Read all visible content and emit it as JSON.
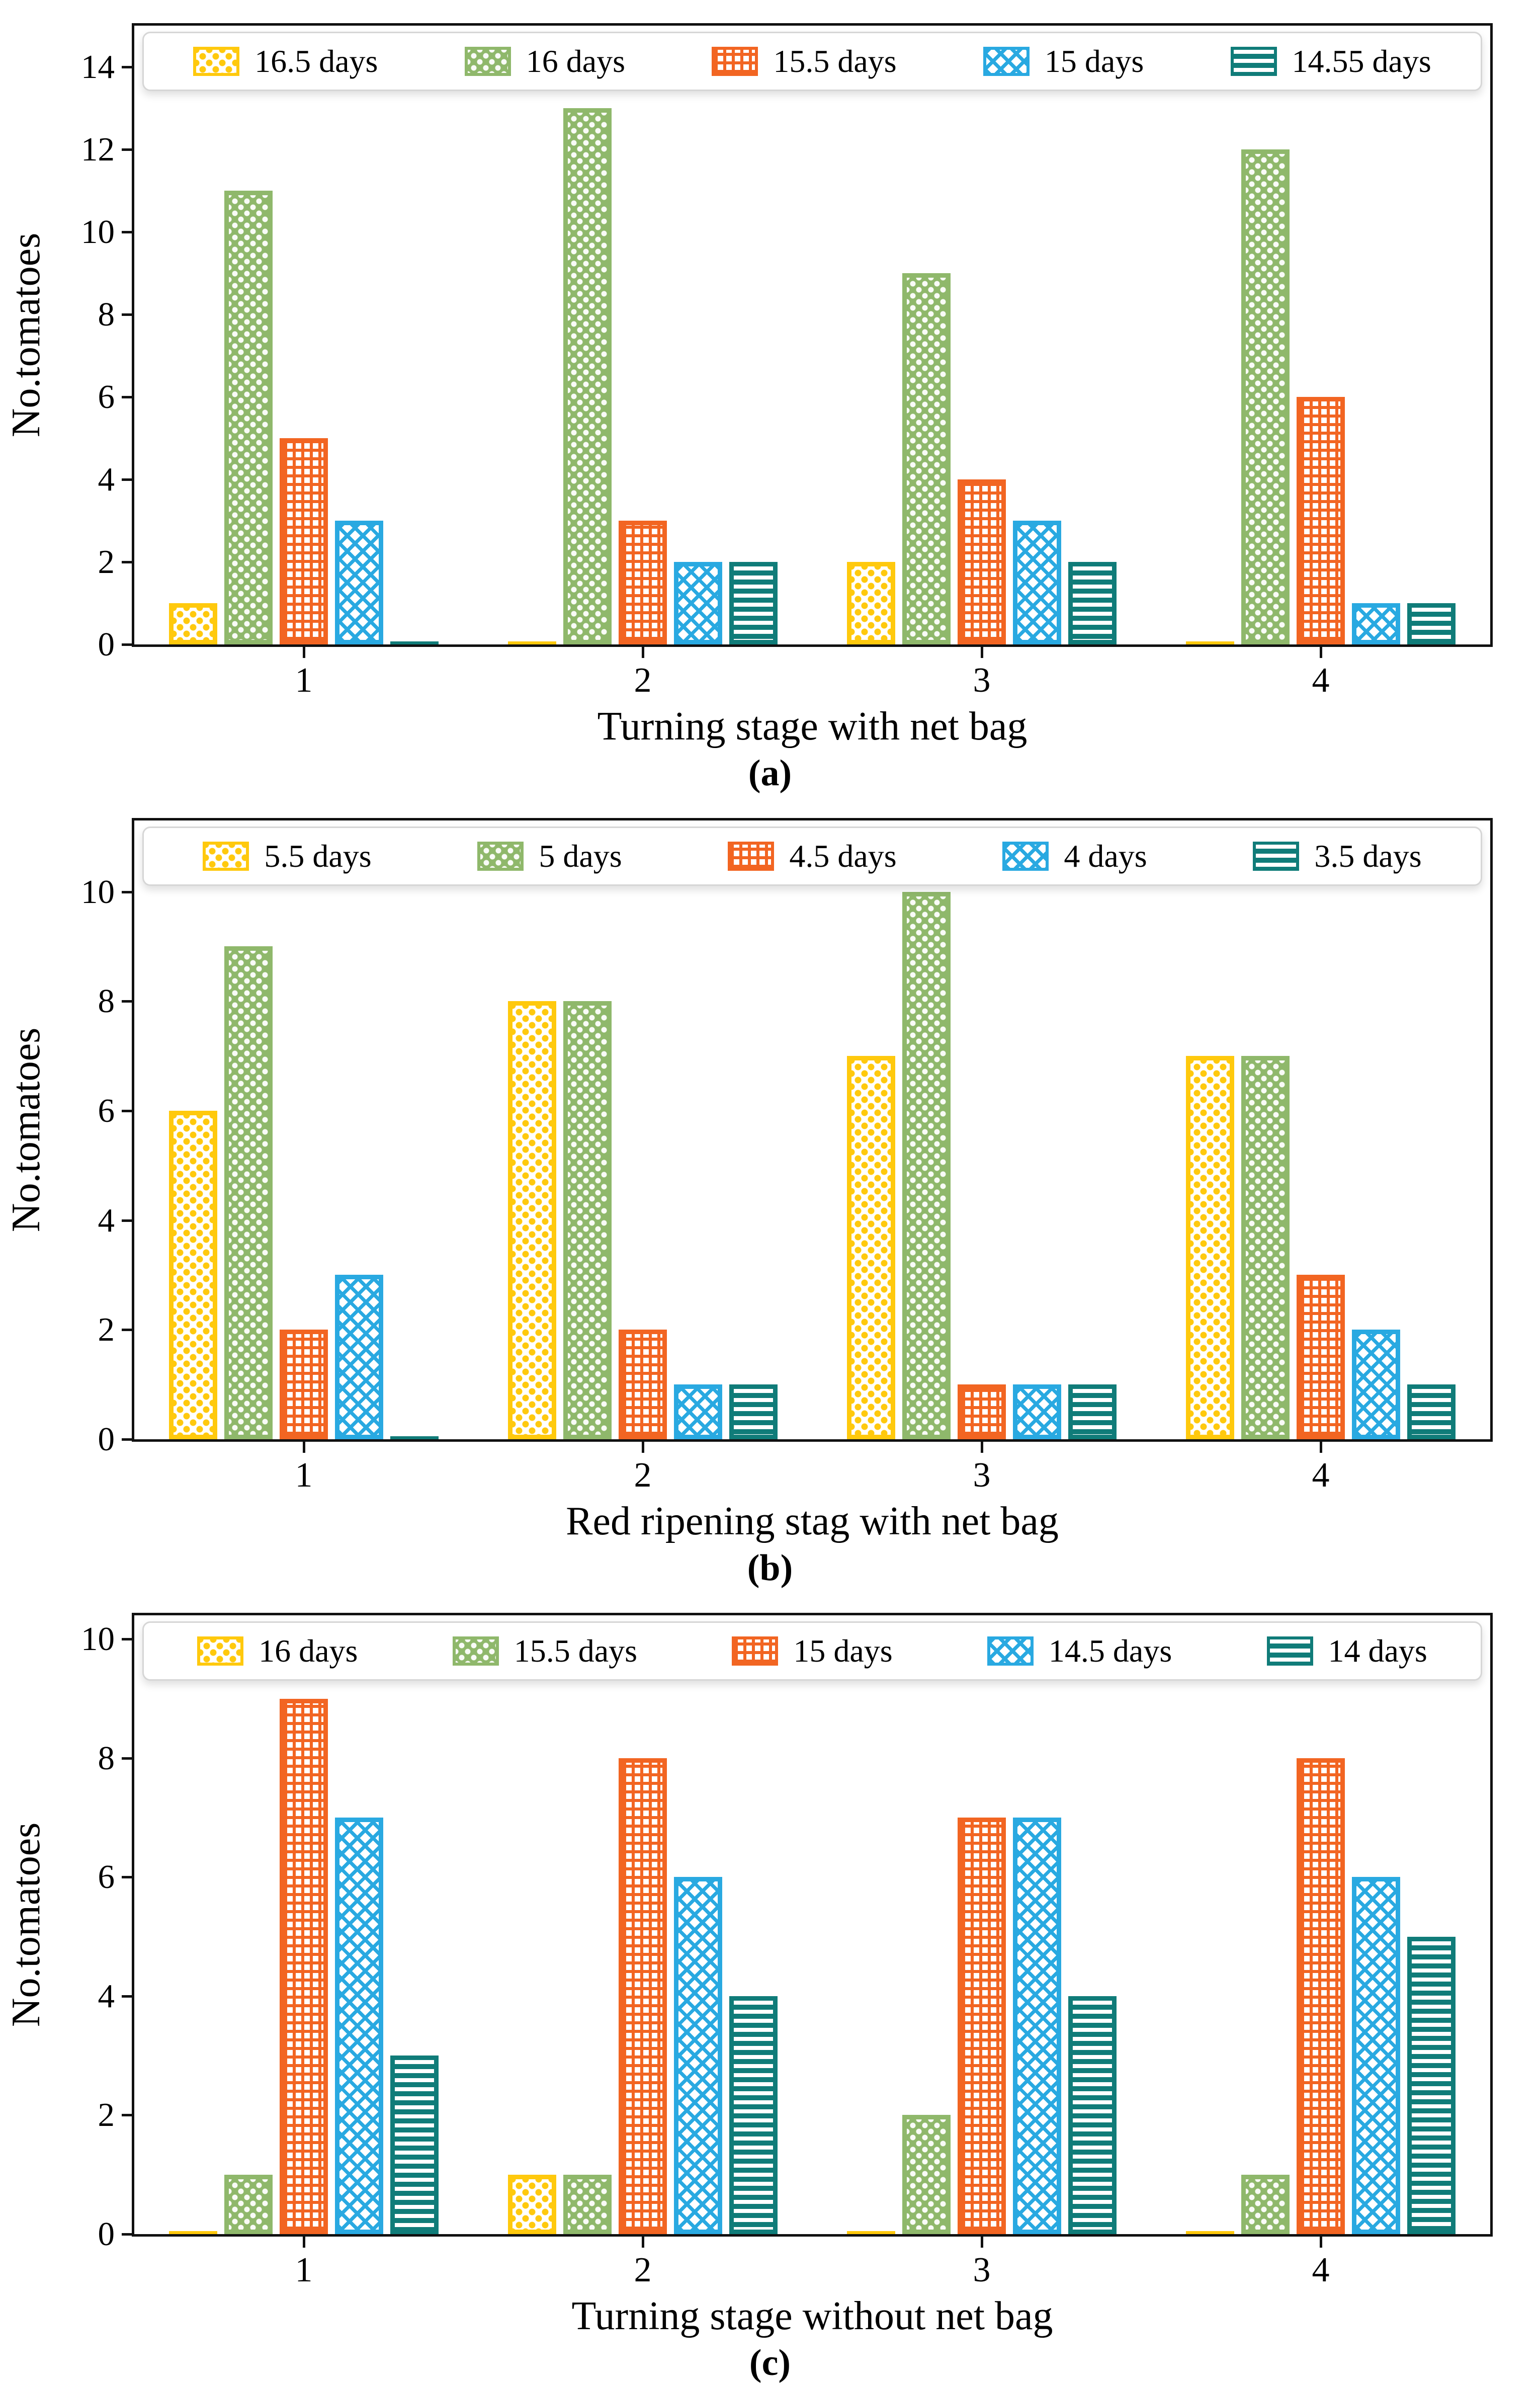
{
  "page": {
    "background": "#ffffff",
    "frame_color": "#111111",
    "text_color": "#000000"
  },
  "chart_data": [
    {
      "type": "bar",
      "caption": "(a)",
      "xlabel": "Turning stage with net bag",
      "ylabel": "No.tomatoes",
      "categories": [
        "1",
        "2",
        "3",
        "4"
      ],
      "yticks": [
        0,
        2,
        4,
        6,
        8,
        10,
        12,
        14
      ],
      "ylim": [
        0,
        15
      ],
      "grid": false,
      "legend_position": "top-inside",
      "series": [
        {
          "name": "16.5 days",
          "color": "#FFC90D",
          "hatch": "dots",
          "values": [
            1,
            0.05,
            2,
            0.05
          ]
        },
        {
          "name": "16 days",
          "color": "#8FB86B",
          "hatch": "stars",
          "values": [
            11,
            13,
            9,
            12
          ]
        },
        {
          "name": "15.5 days",
          "color": "#F26522",
          "hatch": "grid",
          "values": [
            5,
            3,
            4,
            6
          ]
        },
        {
          "name": "15 days",
          "color": "#29A9E1",
          "hatch": "cross",
          "values": [
            3,
            2,
            3,
            1
          ]
        },
        {
          "name": "14.55 days",
          "color": "#107C79",
          "hatch": "hlines",
          "values": [
            0.05,
            2,
            2,
            1
          ]
        }
      ]
    },
    {
      "type": "bar",
      "caption": "(b)",
      "xlabel": "Red ripening stag with net bag",
      "ylabel": "No.tomatoes",
      "categories": [
        "1",
        "2",
        "3",
        "4"
      ],
      "yticks": [
        0,
        2,
        4,
        6,
        8,
        10
      ],
      "ylim": [
        0,
        11.3
      ],
      "grid": false,
      "legend_position": "top-inside",
      "series": [
        {
          "name": "5.5 days",
          "color": "#FFC90D",
          "hatch": "dots",
          "values": [
            6,
            8,
            7,
            7
          ]
        },
        {
          "name": "5 days",
          "color": "#8FB86B",
          "hatch": "stars",
          "values": [
            9,
            8,
            10,
            7
          ]
        },
        {
          "name": "4.5 days",
          "color": "#F26522",
          "hatch": "grid",
          "values": [
            2,
            2,
            1,
            3
          ]
        },
        {
          "name": "4 days",
          "color": "#29A9E1",
          "hatch": "cross",
          "values": [
            3,
            1,
            1,
            2
          ]
        },
        {
          "name": "3.5 days",
          "color": "#107C79",
          "hatch": "hlines",
          "values": [
            0.05,
            1,
            1,
            1
          ]
        }
      ]
    },
    {
      "type": "bar",
      "caption": "(c)",
      "xlabel": "Turning stage without net bag",
      "ylabel": "No.tomatoes",
      "categories": [
        "1",
        "2",
        "3",
        "4"
      ],
      "yticks": [
        0,
        2,
        4,
        6,
        8,
        10
      ],
      "ylim": [
        0,
        10.4
      ],
      "grid": false,
      "legend_position": "top-inside",
      "series": [
        {
          "name": "16 days",
          "color": "#FFC90D",
          "hatch": "dots",
          "values": [
            0.05,
            1,
            0.05,
            0.05
          ]
        },
        {
          "name": "15.5 days",
          "color": "#8FB86B",
          "hatch": "stars",
          "values": [
            1,
            1,
            2,
            1
          ]
        },
        {
          "name": "15 days",
          "color": "#F26522",
          "hatch": "grid",
          "values": [
            9,
            8,
            7,
            8
          ]
        },
        {
          "name": "14.5 days",
          "color": "#29A9E1",
          "hatch": "cross",
          "values": [
            7,
            6,
            7,
            6
          ]
        },
        {
          "name": "14 days",
          "color": "#107C79",
          "hatch": "hlines",
          "values": [
            3,
            4,
            4,
            5
          ]
        }
      ]
    }
  ]
}
